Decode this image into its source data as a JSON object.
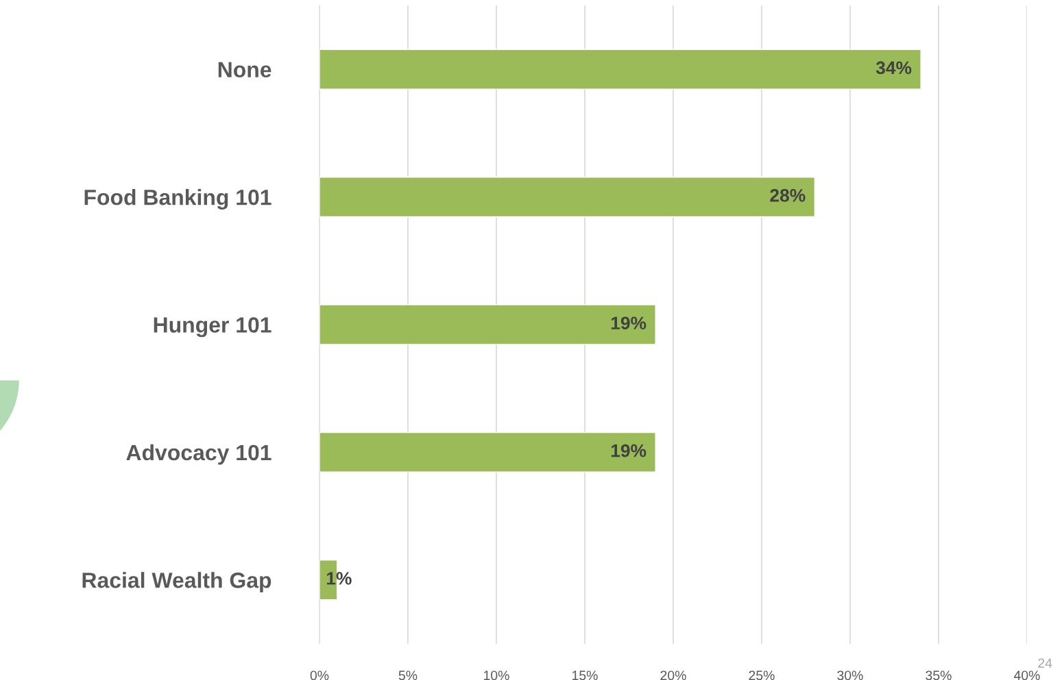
{
  "chart_data": {
    "type": "bar",
    "orientation": "horizontal",
    "categories": [
      "None",
      "Food Banking 101",
      "Hunger 101",
      "Advocacy 101",
      "Racial Wealth Gap"
    ],
    "values": [
      34,
      28,
      19,
      19,
      1
    ],
    "color": "#9bbb59",
    "value_labels": [
      "34%",
      "28%",
      "19%",
      "19%",
      "1%"
    ],
    "xlim": [
      0,
      40
    ],
    "xticks": [
      {
        "value": 0,
        "label": "0%"
      },
      {
        "value": 5,
        "label": "5%"
      },
      {
        "value": 10,
        "label": "10%"
      },
      {
        "value": 15,
        "label": "15%"
      },
      {
        "value": 20,
        "label": "20%"
      },
      {
        "value": 25,
        "label": "25%"
      },
      {
        "value": 30,
        "label": "30%"
      },
      {
        "value": 35,
        "label": "35%"
      },
      {
        "value": 40,
        "label": "40%"
      }
    ],
    "grid": "x",
    "annotations": [
      "24"
    ]
  }
}
